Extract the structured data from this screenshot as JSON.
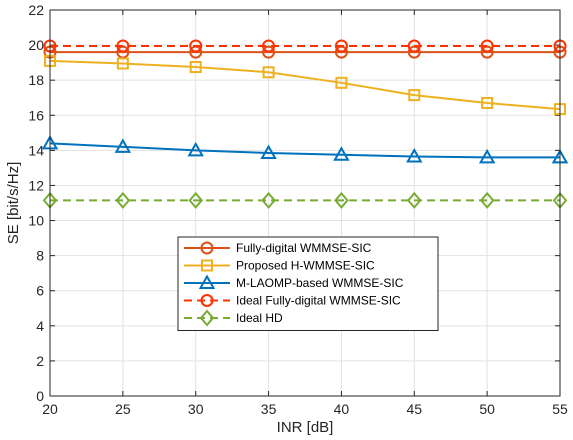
{
  "chart_data": {
    "type": "line",
    "title": "",
    "xlabel": "INR [dB]",
    "ylabel": "SE [bit/s/Hz]",
    "x": [
      20,
      25,
      30,
      35,
      40,
      45,
      50,
      55
    ],
    "xlim": [
      20,
      55
    ],
    "ylim": [
      0,
      22
    ],
    "xticks": [
      "20",
      "25",
      "30",
      "35",
      "40",
      "45",
      "50",
      "55"
    ],
    "yticks": [
      "0",
      "2",
      "4",
      "6",
      "8",
      "10",
      "12",
      "14",
      "16",
      "18",
      "20",
      "22"
    ],
    "grid": true,
    "legend_position": "center",
    "series": [
      {
        "name": "Fully-digital WMMSE-SIC",
        "values": [
          19.6,
          19.6,
          19.6,
          19.6,
          19.6,
          19.6,
          19.6,
          19.6
        ],
        "color": "#D95319",
        "marker": "circle",
        "dash": "solid"
      },
      {
        "name": "Proposed H-WMMSE-SIC",
        "values": [
          19.1,
          18.95,
          18.75,
          18.45,
          17.85,
          17.15,
          16.7,
          16.35
        ],
        "color": "#EDB120",
        "marker": "square",
        "dash": "solid"
      },
      {
        "name": "M-LAOMP-based WMMSE-SIC",
        "values": [
          14.4,
          14.2,
          14.0,
          13.85,
          13.75,
          13.65,
          13.6,
          13.6
        ],
        "color": "#0072BD",
        "marker": "triangle",
        "dash": "solid"
      },
      {
        "name": "Ideal Fully-digital WMMSE-SIC",
        "values": [
          19.95,
          19.95,
          19.95,
          19.95,
          19.95,
          19.95,
          19.95,
          19.95
        ],
        "color": "#FF3300",
        "marker": "circle",
        "dash": "dashed"
      },
      {
        "name": "Ideal HD",
        "values": [
          11.15,
          11.15,
          11.15,
          11.15,
          11.15,
          11.15,
          11.15,
          11.15
        ],
        "color": "#77AC30",
        "marker": "diamond",
        "dash": "dashed"
      }
    ]
  }
}
